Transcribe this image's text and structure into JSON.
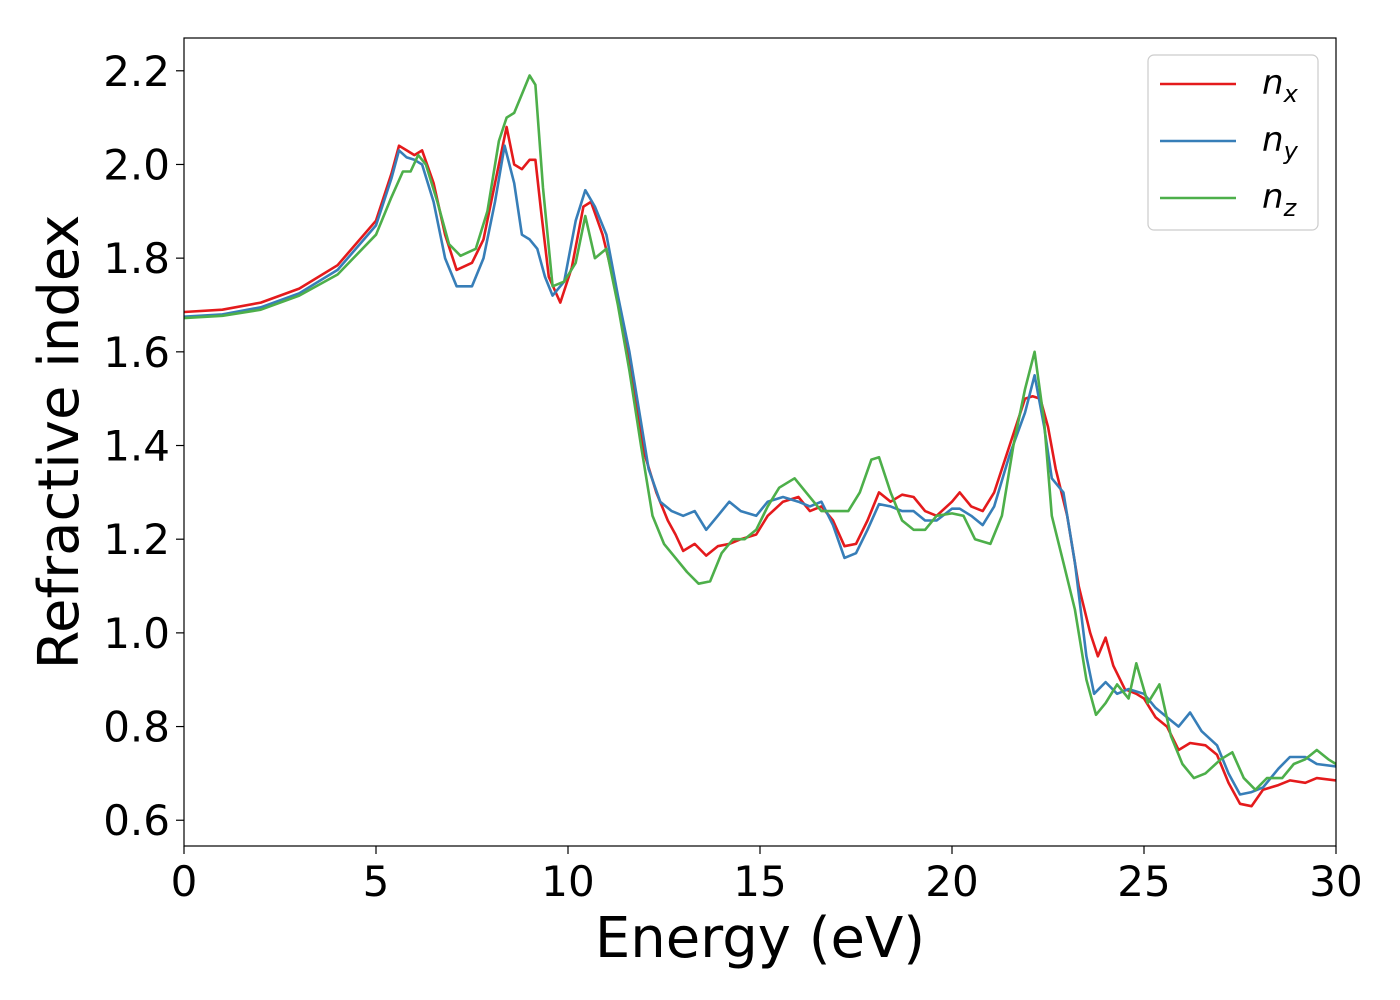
{
  "chart_data": {
    "type": "line",
    "xlabel": "Energy (eV)",
    "ylabel": "Refractive index",
    "xlim": [
      0,
      30
    ],
    "ylim": [
      0.545,
      2.27
    ],
    "xticks": [
      0,
      5,
      10,
      15,
      20,
      25,
      30
    ],
    "xtick_labels": [
      "0",
      "5",
      "10",
      "15",
      "20",
      "25",
      "30"
    ],
    "yticks": [
      0.6,
      0.8,
      1.0,
      1.2,
      1.4,
      1.6,
      1.8,
      2.0,
      2.2
    ],
    "ytick_labels": [
      "0.6",
      "0.8",
      "1.0",
      "1.2",
      "1.4",
      "1.6",
      "1.8",
      "2.0",
      "2.2"
    ],
    "grid": false,
    "legend_position": "top-right",
    "series": [
      {
        "name": "n_x",
        "label_base": "n",
        "label_sub": "x",
        "color": "#e41a1c",
        "points": [
          [
            0,
            1.685
          ],
          [
            1,
            1.69
          ],
          [
            2,
            1.705
          ],
          [
            3,
            1.735
          ],
          [
            4,
            1.785
          ],
          [
            5,
            1.88
          ],
          [
            5.4,
            1.98
          ],
          [
            5.6,
            2.04
          ],
          [
            5.8,
            2.03
          ],
          [
            6.0,
            2.02
          ],
          [
            6.2,
            2.03
          ],
          [
            6.5,
            1.96
          ],
          [
            6.8,
            1.85
          ],
          [
            7.1,
            1.775
          ],
          [
            7.5,
            1.79
          ],
          [
            7.8,
            1.84
          ],
          [
            8.1,
            1.96
          ],
          [
            8.4,
            2.08
          ],
          [
            8.6,
            2.0
          ],
          [
            8.8,
            1.99
          ],
          [
            9.0,
            2.01
          ],
          [
            9.15,
            2.01
          ],
          [
            9.3,
            1.9
          ],
          [
            9.5,
            1.76
          ],
          [
            9.8,
            1.705
          ],
          [
            10.1,
            1.78
          ],
          [
            10.4,
            1.91
          ],
          [
            10.6,
            1.92
          ],
          [
            10.9,
            1.85
          ],
          [
            11.2,
            1.75
          ],
          [
            11.5,
            1.62
          ],
          [
            11.8,
            1.48
          ],
          [
            12.0,
            1.38
          ],
          [
            12.3,
            1.3
          ],
          [
            12.6,
            1.24
          ],
          [
            12.8,
            1.21
          ],
          [
            13.0,
            1.175
          ],
          [
            13.3,
            1.19
          ],
          [
            13.6,
            1.165
          ],
          [
            13.9,
            1.185
          ],
          [
            14.2,
            1.19
          ],
          [
            14.5,
            1.2
          ],
          [
            14.9,
            1.21
          ],
          [
            15.2,
            1.25
          ],
          [
            15.6,
            1.28
          ],
          [
            16.0,
            1.29
          ],
          [
            16.3,
            1.26
          ],
          [
            16.6,
            1.27
          ],
          [
            16.9,
            1.24
          ],
          [
            17.2,
            1.185
          ],
          [
            17.5,
            1.19
          ],
          [
            17.8,
            1.24
          ],
          [
            18.1,
            1.3
          ],
          [
            18.4,
            1.28
          ],
          [
            18.7,
            1.295
          ],
          [
            19.0,
            1.29
          ],
          [
            19.3,
            1.26
          ],
          [
            19.6,
            1.25
          ],
          [
            20.0,
            1.28
          ],
          [
            20.2,
            1.3
          ],
          [
            20.5,
            1.27
          ],
          [
            20.8,
            1.26
          ],
          [
            21.1,
            1.3
          ],
          [
            21.5,
            1.4
          ],
          [
            21.9,
            1.5
          ],
          [
            22.1,
            1.505
          ],
          [
            22.3,
            1.5
          ],
          [
            22.5,
            1.44
          ],
          [
            22.7,
            1.35
          ],
          [
            23.0,
            1.25
          ],
          [
            23.3,
            1.1
          ],
          [
            23.6,
            1.0
          ],
          [
            23.8,
            0.95
          ],
          [
            24.0,
            0.99
          ],
          [
            24.2,
            0.93
          ],
          [
            24.5,
            0.88
          ],
          [
            24.8,
            0.87
          ],
          [
            25.0,
            0.86
          ],
          [
            25.3,
            0.82
          ],
          [
            25.6,
            0.8
          ],
          [
            25.9,
            0.75
          ],
          [
            26.2,
            0.765
          ],
          [
            26.6,
            0.76
          ],
          [
            26.9,
            0.74
          ],
          [
            27.2,
            0.68
          ],
          [
            27.5,
            0.635
          ],
          [
            27.8,
            0.63
          ],
          [
            28.1,
            0.665
          ],
          [
            28.5,
            0.675
          ],
          [
            28.8,
            0.685
          ],
          [
            29.2,
            0.68
          ],
          [
            29.5,
            0.69
          ],
          [
            30.0,
            0.685
          ]
        ]
      },
      {
        "name": "n_y",
        "label_base": "n",
        "label_sub": "y",
        "color": "#377eb8",
        "points": [
          [
            0,
            1.675
          ],
          [
            1,
            1.68
          ],
          [
            2,
            1.695
          ],
          [
            3,
            1.725
          ],
          [
            4,
            1.775
          ],
          [
            5,
            1.87
          ],
          [
            5.4,
            1.97
          ],
          [
            5.6,
            2.03
          ],
          [
            5.8,
            2.015
          ],
          [
            6.0,
            2.01
          ],
          [
            6.2,
            2.0
          ],
          [
            6.5,
            1.92
          ],
          [
            6.8,
            1.8
          ],
          [
            7.1,
            1.74
          ],
          [
            7.5,
            1.74
          ],
          [
            7.8,
            1.8
          ],
          [
            8.1,
            1.92
          ],
          [
            8.35,
            2.04
          ],
          [
            8.6,
            1.96
          ],
          [
            8.8,
            1.85
          ],
          [
            9.0,
            1.84
          ],
          [
            9.2,
            1.82
          ],
          [
            9.4,
            1.76
          ],
          [
            9.6,
            1.72
          ],
          [
            9.9,
            1.75
          ],
          [
            10.2,
            1.88
          ],
          [
            10.45,
            1.945
          ],
          [
            10.7,
            1.91
          ],
          [
            11.0,
            1.85
          ],
          [
            11.3,
            1.72
          ],
          [
            11.6,
            1.6
          ],
          [
            11.9,
            1.45
          ],
          [
            12.1,
            1.35
          ],
          [
            12.4,
            1.28
          ],
          [
            12.7,
            1.26
          ],
          [
            13.0,
            1.25
          ],
          [
            13.3,
            1.26
          ],
          [
            13.6,
            1.22
          ],
          [
            13.9,
            1.25
          ],
          [
            14.2,
            1.28
          ],
          [
            14.5,
            1.26
          ],
          [
            14.9,
            1.25
          ],
          [
            15.2,
            1.28
          ],
          [
            15.6,
            1.29
          ],
          [
            16.0,
            1.28
          ],
          [
            16.3,
            1.27
          ],
          [
            16.6,
            1.28
          ],
          [
            16.9,
            1.23
          ],
          [
            17.2,
            1.16
          ],
          [
            17.5,
            1.17
          ],
          [
            17.8,
            1.22
          ],
          [
            18.1,
            1.275
          ],
          [
            18.4,
            1.27
          ],
          [
            18.7,
            1.26
          ],
          [
            19.0,
            1.26
          ],
          [
            19.3,
            1.24
          ],
          [
            19.6,
            1.24
          ],
          [
            20.0,
            1.265
          ],
          [
            20.2,
            1.265
          ],
          [
            20.5,
            1.25
          ],
          [
            20.8,
            1.23
          ],
          [
            21.1,
            1.27
          ],
          [
            21.5,
            1.38
          ],
          [
            21.9,
            1.47
          ],
          [
            22.15,
            1.55
          ],
          [
            22.4,
            1.44
          ],
          [
            22.6,
            1.33
          ],
          [
            22.9,
            1.3
          ],
          [
            23.2,
            1.15
          ],
          [
            23.5,
            0.95
          ],
          [
            23.7,
            0.87
          ],
          [
            24.0,
            0.895
          ],
          [
            24.3,
            0.87
          ],
          [
            24.6,
            0.88
          ],
          [
            25.0,
            0.87
          ],
          [
            25.3,
            0.84
          ],
          [
            25.6,
            0.82
          ],
          [
            25.9,
            0.8
          ],
          [
            26.2,
            0.83
          ],
          [
            26.5,
            0.79
          ],
          [
            26.9,
            0.76
          ],
          [
            27.2,
            0.7
          ],
          [
            27.5,
            0.655
          ],
          [
            27.8,
            0.66
          ],
          [
            28.1,
            0.67
          ],
          [
            28.5,
            0.71
          ],
          [
            28.8,
            0.735
          ],
          [
            29.2,
            0.735
          ],
          [
            29.5,
            0.72
          ],
          [
            30.0,
            0.715
          ]
        ]
      },
      {
        "name": "n_z",
        "label_base": "n",
        "label_sub": "z",
        "color": "#4daf4a",
        "points": [
          [
            0,
            1.672
          ],
          [
            1,
            1.677
          ],
          [
            2,
            1.69
          ],
          [
            3,
            1.72
          ],
          [
            4,
            1.765
          ],
          [
            5,
            1.85
          ],
          [
            5.4,
            1.93
          ],
          [
            5.7,
            1.985
          ],
          [
            5.9,
            1.985
          ],
          [
            6.1,
            2.02
          ],
          [
            6.3,
            2.0
          ],
          [
            6.6,
            1.92
          ],
          [
            6.9,
            1.83
          ],
          [
            7.2,
            1.805
          ],
          [
            7.6,
            1.82
          ],
          [
            7.9,
            1.9
          ],
          [
            8.2,
            2.05
          ],
          [
            8.4,
            2.1
          ],
          [
            8.6,
            2.11
          ],
          [
            8.8,
            2.15
          ],
          [
            9.0,
            2.19
          ],
          [
            9.15,
            2.17
          ],
          [
            9.35,
            1.95
          ],
          [
            9.6,
            1.74
          ],
          [
            9.9,
            1.75
          ],
          [
            10.2,
            1.79
          ],
          [
            10.45,
            1.89
          ],
          [
            10.7,
            1.8
          ],
          [
            11.0,
            1.82
          ],
          [
            11.3,
            1.7
          ],
          [
            11.6,
            1.56
          ],
          [
            11.9,
            1.4
          ],
          [
            12.2,
            1.25
          ],
          [
            12.5,
            1.19
          ],
          [
            12.8,
            1.16
          ],
          [
            13.1,
            1.13
          ],
          [
            13.4,
            1.105
          ],
          [
            13.7,
            1.11
          ],
          [
            14.0,
            1.17
          ],
          [
            14.3,
            1.2
          ],
          [
            14.6,
            1.2
          ],
          [
            14.9,
            1.22
          ],
          [
            15.2,
            1.27
          ],
          [
            15.5,
            1.31
          ],
          [
            15.9,
            1.33
          ],
          [
            16.2,
            1.3
          ],
          [
            16.6,
            1.26
          ],
          [
            16.9,
            1.26
          ],
          [
            17.3,
            1.26
          ],
          [
            17.6,
            1.3
          ],
          [
            17.9,
            1.37
          ],
          [
            18.1,
            1.375
          ],
          [
            18.4,
            1.3
          ],
          [
            18.7,
            1.24
          ],
          [
            19.0,
            1.22
          ],
          [
            19.3,
            1.22
          ],
          [
            19.6,
            1.25
          ],
          [
            20.0,
            1.255
          ],
          [
            20.3,
            1.25
          ],
          [
            20.6,
            1.2
          ],
          [
            21.0,
            1.19
          ],
          [
            21.3,
            1.25
          ],
          [
            21.6,
            1.4
          ],
          [
            21.9,
            1.52
          ],
          [
            22.15,
            1.6
          ],
          [
            22.4,
            1.45
          ],
          [
            22.6,
            1.25
          ],
          [
            22.9,
            1.15
          ],
          [
            23.2,
            1.05
          ],
          [
            23.5,
            0.9
          ],
          [
            23.75,
            0.825
          ],
          [
            24.0,
            0.85
          ],
          [
            24.3,
            0.89
          ],
          [
            24.6,
            0.86
          ],
          [
            24.8,
            0.935
          ],
          [
            25.1,
            0.85
          ],
          [
            25.4,
            0.89
          ],
          [
            25.7,
            0.78
          ],
          [
            26.0,
            0.72
          ],
          [
            26.3,
            0.69
          ],
          [
            26.6,
            0.7
          ],
          [
            27.0,
            0.73
          ],
          [
            27.3,
            0.745
          ],
          [
            27.6,
            0.69
          ],
          [
            27.9,
            0.665
          ],
          [
            28.2,
            0.69
          ],
          [
            28.6,
            0.69
          ],
          [
            28.9,
            0.72
          ],
          [
            29.2,
            0.73
          ],
          [
            29.5,
            0.75
          ],
          [
            29.8,
            0.73
          ],
          [
            30.0,
            0.72
          ]
        ]
      }
    ]
  }
}
